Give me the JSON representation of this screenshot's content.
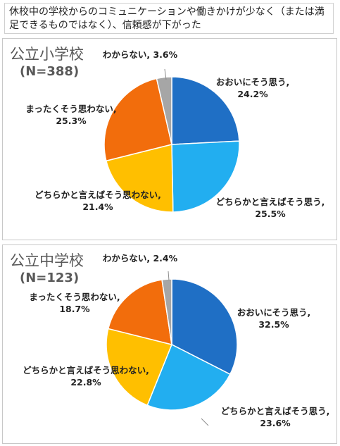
{
  "title": "休校中の学校からのコミュニケーションや働きかけが少なく（または満足できるものではなく）、信頼感が下がった",
  "colors": {
    "strongly_agree": "#1f6fc5",
    "somewhat_agree": "#22aef0",
    "somewhat_disagree": "#ffbf00",
    "strongly_disagree": "#f26d0c",
    "dont_know": "#a6a6a6"
  },
  "chart_data": [
    {
      "type": "pie",
      "title": "公立小学校",
      "subtitle": "(N=388)",
      "slices": [
        {
          "name": "おおいにそう思う,",
          "value": 24.2,
          "label": "24.2%"
        },
        {
          "name": "どちらかと言えばそう思う,",
          "value": 25.5,
          "label": "25.5%"
        },
        {
          "name": "どちらかと言えばそう思わない,",
          "value": 21.4,
          "label": "21.4%"
        },
        {
          "name": "まったくそう思わない,",
          "value": 25.3,
          "label": "25.3%"
        },
        {
          "name": "わからない,",
          "value": 3.6,
          "label": "3.6%"
        }
      ]
    },
    {
      "type": "pie",
      "title": "公立中学校",
      "subtitle": "(N=123)",
      "slices": [
        {
          "name": "おおいにそう思う,",
          "value": 32.5,
          "label": "32.5%"
        },
        {
          "name": "どちらかと言えばそう思う,",
          "value": 23.6,
          "label": "23.6%"
        },
        {
          "name": "どちらかと言えばそう思わない,",
          "value": 22.8,
          "label": "22.8%"
        },
        {
          "name": "まったくそう思わない,",
          "value": 18.7,
          "label": "18.7%"
        },
        {
          "name": "わからない,",
          "value": 2.4,
          "label": "2.4%"
        }
      ]
    }
  ]
}
